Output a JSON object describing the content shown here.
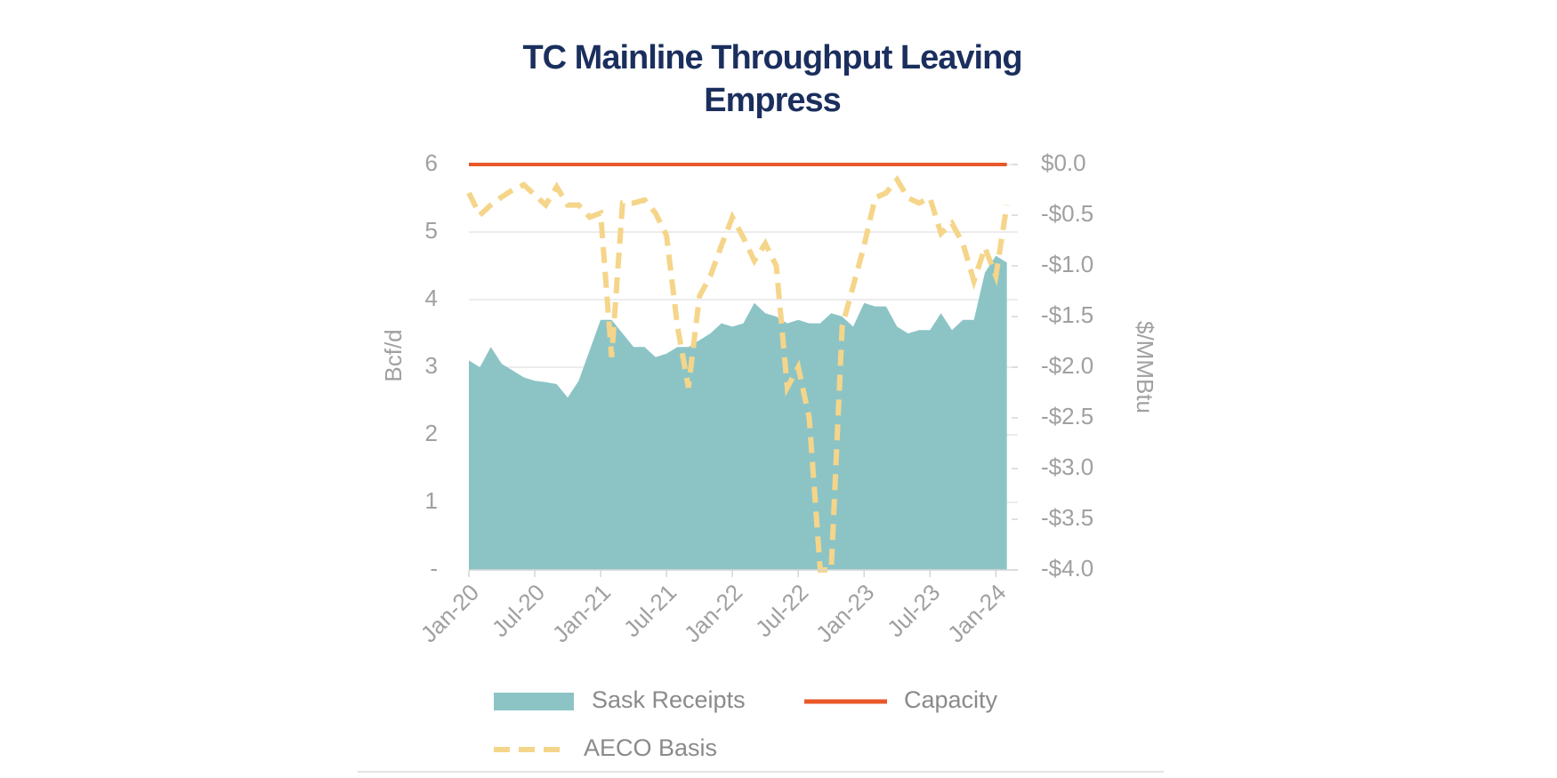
{
  "chart_data": {
    "type": "area-line",
    "title": [
      "TC Mainline Throughput Leaving",
      "Empress"
    ],
    "y_label": "Bcf/d",
    "y2_label": "$/MMBtu",
    "categories": [
      "Jan-20",
      null,
      null,
      null,
      null,
      null,
      "Jul-20",
      null,
      null,
      null,
      null,
      null,
      "Jan-21",
      null,
      null,
      null,
      null,
      null,
      "Jul-21",
      null,
      null,
      null,
      null,
      null,
      "Jan-22",
      null,
      null,
      null,
      null,
      null,
      "Jul-22",
      null,
      null,
      null,
      null,
      null,
      "Jan-23",
      null,
      null,
      null,
      null,
      null,
      "Jul-23",
      null,
      null,
      null,
      null,
      null,
      "Jan-24",
      null
    ],
    "series": [
      {
        "name": "Sask Receipts",
        "kind": "area",
        "color": "#8cc4c6",
        "values": [
          3.1,
          3.0,
          3.3,
          3.05,
          2.95,
          2.85,
          2.8,
          2.78,
          2.75,
          2.55,
          2.8,
          3.25,
          3.7,
          3.7,
          3.5,
          3.3,
          3.3,
          3.15,
          3.2,
          3.3,
          3.3,
          3.4,
          3.5,
          3.65,
          3.6,
          3.65,
          3.95,
          3.8,
          3.75,
          3.65,
          3.7,
          3.65,
          3.65,
          3.8,
          3.75,
          3.6,
          3.95,
          3.9,
          3.9,
          3.6,
          3.5,
          3.55,
          3.55,
          3.8,
          3.55,
          3.7,
          3.7,
          4.4,
          4.65,
          4.55
        ]
      },
      {
        "name": "Capacity",
        "kind": "line",
        "color": "#e8582a",
        "values": [
          6,
          6,
          6,
          6,
          6,
          6,
          6,
          6,
          6,
          6,
          6,
          6,
          6,
          6,
          6,
          6,
          6,
          6,
          6,
          6,
          6,
          6,
          6,
          6,
          6,
          6,
          6,
          6,
          6,
          6,
          6,
          6,
          6,
          6,
          6,
          6,
          6,
          6,
          6,
          6,
          6,
          6,
          6,
          6,
          6,
          6,
          6,
          6,
          6,
          6
        ]
      },
      {
        "name": "AECO Basis",
        "kind": "dashed",
        "axis": "y2",
        "color": "#f5d58a",
        "values": [
          -0.28,
          -0.5,
          -0.4,
          -0.32,
          -0.25,
          -0.2,
          -0.3,
          -0.4,
          -0.22,
          -0.4,
          -0.4,
          -0.52,
          -0.48,
          -1.9,
          -0.38,
          -0.38,
          -0.35,
          -0.48,
          -0.7,
          -1.6,
          -2.2,
          -1.3,
          -1.1,
          -0.8,
          -0.52,
          -0.72,
          -0.95,
          -0.78,
          -1.0,
          -2.2,
          -2.0,
          -2.5,
          -4.0,
          -4.0,
          -1.6,
          -1.2,
          -0.8,
          -0.33,
          -0.28,
          -0.15,
          -0.33,
          -0.38,
          -0.33,
          -0.68,
          -0.58,
          -0.78,
          -1.15,
          -0.82,
          -1.1,
          -0.4
        ]
      }
    ],
    "ylim": [
      0,
      6
    ],
    "yticks": [
      {
        "value": 0,
        "label": "-"
      },
      1,
      2,
      3,
      4,
      5,
      6
    ],
    "y2lim": [
      -4,
      0
    ],
    "y2ticks": [
      {
        "value": -4,
        "label": "-$4.0"
      },
      {
        "value": -3.5,
        "label": "-$3.5"
      },
      {
        "value": -3,
        "label": "-$3.0"
      },
      {
        "value": -2.5,
        "label": "-$2.5"
      },
      {
        "value": -2,
        "label": "-$2.0"
      },
      {
        "value": -1.5,
        "label": "-$1.5"
      },
      {
        "value": -1,
        "label": "-$1.0"
      },
      {
        "value": -0.5,
        "label": "-$0.5"
      },
      {
        "value": 0,
        "label": "$0.0"
      }
    ],
    "grid": true
  }
}
